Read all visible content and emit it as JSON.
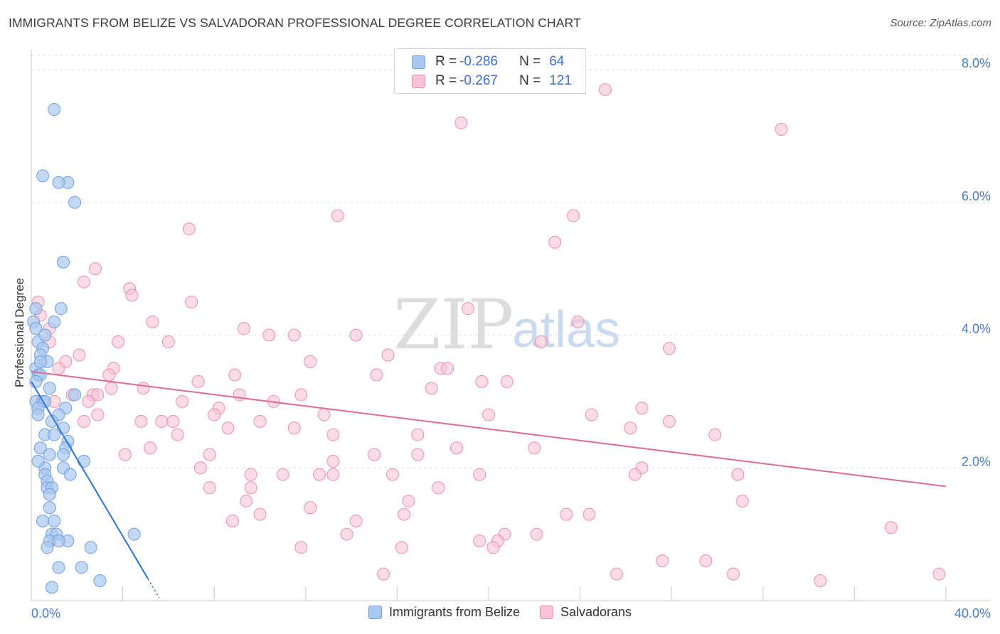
{
  "header": {
    "title": "IMMIGRANTS FROM BELIZE VS SALVADORAN PROFESSIONAL DEGREE CORRELATION CHART",
    "source": "Source: ZipAtlas.com"
  },
  "watermark": {
    "zip": "ZIP",
    "atlas": "atlas"
  },
  "legend": {
    "rows": [
      {
        "r_label": "R =",
        "r_value": "-0.286",
        "n_label": "N =",
        "n_value": "64"
      },
      {
        "r_label": "R =",
        "r_value": "-0.267",
        "n_label": "N =",
        "n_value": "121"
      }
    ]
  },
  "colors": {
    "belize_fill": "#a9c8f0",
    "belize_stroke": "#6f9fdc",
    "belize_line": "#2f72d6",
    "salv_fill": "#f8c3d2",
    "salv_stroke": "#e98fab",
    "salv_line": "#e06a93",
    "grid": "#e3e3e3",
    "tick_text": "#4a7bc8"
  },
  "chart_data": {
    "type": "scatter",
    "title": "IMMIGRANTS FROM BELIZE VS SALVADORAN PROFESSIONAL DEGREE CORRELATION CHART",
    "xlabel": "",
    "ylabel": "Professional Degree",
    "xlim": [
      0,
      40
    ],
    "ylim": [
      0,
      8.3
    ],
    "x_tick_labels": [
      "0.0%",
      "40.0%"
    ],
    "y_ticks": [
      2,
      4,
      6,
      8
    ],
    "y_tick_labels": [
      "2.0%",
      "4.0%",
      "6.0%",
      "8.0%"
    ],
    "grid": true,
    "series": [
      {
        "name": "Immigrants from Belize",
        "r": -0.286,
        "n": 64,
        "trend": {
          "x0": 0,
          "y0": 3.3,
          "x1": 5.1,
          "y1": 0.33,
          "dash_to_x": 5.6
        },
        "points": [
          [
            1.0,
            7.4
          ],
          [
            0.5,
            6.4
          ],
          [
            1.6,
            6.3
          ],
          [
            1.2,
            6.3
          ],
          [
            1.9,
            6.0
          ],
          [
            1.4,
            5.1
          ],
          [
            1.3,
            4.4
          ],
          [
            0.2,
            4.4
          ],
          [
            0.1,
            4.2
          ],
          [
            1.0,
            4.2
          ],
          [
            0.2,
            4.1
          ],
          [
            0.3,
            3.9
          ],
          [
            0.5,
            3.8
          ],
          [
            0.4,
            3.7
          ],
          [
            0.7,
            3.6
          ],
          [
            0.2,
            3.5
          ],
          [
            0.3,
            3.4
          ],
          [
            0.4,
            3.4
          ],
          [
            0.2,
            3.3
          ],
          [
            0.8,
            3.2
          ],
          [
            1.9,
            3.1
          ],
          [
            0.2,
            3.0
          ],
          [
            0.5,
            3.0
          ],
          [
            0.6,
            3.0
          ],
          [
            0.3,
            2.9
          ],
          [
            1.5,
            2.9
          ],
          [
            0.3,
            2.8
          ],
          [
            1.2,
            2.8
          ],
          [
            0.9,
            2.7
          ],
          [
            1.4,
            2.6
          ],
          [
            0.6,
            2.5
          ],
          [
            1.6,
            2.4
          ],
          [
            0.4,
            2.3
          ],
          [
            1.5,
            2.3
          ],
          [
            1.4,
            2.2
          ],
          [
            0.8,
            2.2
          ],
          [
            2.3,
            2.1
          ],
          [
            1.4,
            2.0
          ],
          [
            0.6,
            2.0
          ],
          [
            1.7,
            1.9
          ],
          [
            0.6,
            1.9
          ],
          [
            0.7,
            1.8
          ],
          [
            0.7,
            1.7
          ],
          [
            0.9,
            1.7
          ],
          [
            0.8,
            1.6
          ],
          [
            0.8,
            1.4
          ],
          [
            0.5,
            1.2
          ],
          [
            1.0,
            1.2
          ],
          [
            0.9,
            1.0
          ],
          [
            1.1,
            1.0
          ],
          [
            4.5,
            1.0
          ],
          [
            0.8,
            0.9
          ],
          [
            1.6,
            0.9
          ],
          [
            1.2,
            0.9
          ],
          [
            0.7,
            0.8
          ],
          [
            2.6,
            0.8
          ],
          [
            1.2,
            0.5
          ],
          [
            2.2,
            0.5
          ],
          [
            3.0,
            0.3
          ],
          [
            0.9,
            0.2
          ],
          [
            0.3,
            2.1
          ],
          [
            1.0,
            2.5
          ],
          [
            0.4,
            3.6
          ],
          [
            0.6,
            4.0
          ]
        ]
      },
      {
        "name": "Salvadorans",
        "r": -0.267,
        "n": 121,
        "trend": {
          "x0": 0,
          "y0": 3.45,
          "x1": 40,
          "y1": 1.72
        },
        "points": [
          [
            25.1,
            7.7
          ],
          [
            18.8,
            7.2
          ],
          [
            32.8,
            7.1
          ],
          [
            13.4,
            5.8
          ],
          [
            23.7,
            5.8
          ],
          [
            6.9,
            5.6
          ],
          [
            22.9,
            5.4
          ],
          [
            2.8,
            5.0
          ],
          [
            2.3,
            4.8
          ],
          [
            4.3,
            4.7
          ],
          [
            4.4,
            4.6
          ],
          [
            7.0,
            4.5
          ],
          [
            0.3,
            4.5
          ],
          [
            19.1,
            4.4
          ],
          [
            5.3,
            4.2
          ],
          [
            23.9,
            4.2
          ],
          [
            0.8,
            4.1
          ],
          [
            9.3,
            4.1
          ],
          [
            10.4,
            4.0
          ],
          [
            11.5,
            4.0
          ],
          [
            14.2,
            4.0
          ],
          [
            0.8,
            3.9
          ],
          [
            6.0,
            3.9
          ],
          [
            22.3,
            3.9
          ],
          [
            3.8,
            3.9
          ],
          [
            27.9,
            3.8
          ],
          [
            15.6,
            3.7
          ],
          [
            2.1,
            3.7
          ],
          [
            12.2,
            3.6
          ],
          [
            1.5,
            3.6
          ],
          [
            3.6,
            3.5
          ],
          [
            17.9,
            3.5
          ],
          [
            1.2,
            3.5
          ],
          [
            8.9,
            3.4
          ],
          [
            3.4,
            3.4
          ],
          [
            15.1,
            3.4
          ],
          [
            7.3,
            3.3
          ],
          [
            20.8,
            3.3
          ],
          [
            19.7,
            3.3
          ],
          [
            4.9,
            3.2
          ],
          [
            17.5,
            3.2
          ],
          [
            2.7,
            3.1
          ],
          [
            9.1,
            3.1
          ],
          [
            11.8,
            3.1
          ],
          [
            1.8,
            3.1
          ],
          [
            2.5,
            3.0
          ],
          [
            10.6,
            3.0
          ],
          [
            8.2,
            2.9
          ],
          [
            26.7,
            2.9
          ],
          [
            8.0,
            2.8
          ],
          [
            2.9,
            2.8
          ],
          [
            12.8,
            2.8
          ],
          [
            20.0,
            2.8
          ],
          [
            24.5,
            2.8
          ],
          [
            2.3,
            2.7
          ],
          [
            4.8,
            2.7
          ],
          [
            5.7,
            2.7
          ],
          [
            6.2,
            2.7
          ],
          [
            10.0,
            2.7
          ],
          [
            27.9,
            2.7
          ],
          [
            8.6,
            2.6
          ],
          [
            26.2,
            2.6
          ],
          [
            11.5,
            2.6
          ],
          [
            13.2,
            2.5
          ],
          [
            6.4,
            2.5
          ],
          [
            16.9,
            2.5
          ],
          [
            29.9,
            2.5
          ],
          [
            5.2,
            2.3
          ],
          [
            18.6,
            2.3
          ],
          [
            22.0,
            2.3
          ],
          [
            7.8,
            2.2
          ],
          [
            4.1,
            2.2
          ],
          [
            16.9,
            2.2
          ],
          [
            15.0,
            2.2
          ],
          [
            13.2,
            2.1
          ],
          [
            7.4,
            2.0
          ],
          [
            26.7,
            2.0
          ],
          [
            13.2,
            1.9
          ],
          [
            11.0,
            1.9
          ],
          [
            9.6,
            1.9
          ],
          [
            12.6,
            1.9
          ],
          [
            15.8,
            1.9
          ],
          [
            19.6,
            1.9
          ],
          [
            26.4,
            1.9
          ],
          [
            30.9,
            1.9
          ],
          [
            9.6,
            1.7
          ],
          [
            17.8,
            1.7
          ],
          [
            7.8,
            1.7
          ],
          [
            16.5,
            1.5
          ],
          [
            12.2,
            1.4
          ],
          [
            31.1,
            1.5
          ],
          [
            9.4,
            1.5
          ],
          [
            10.0,
            1.3
          ],
          [
            16.3,
            1.3
          ],
          [
            14.2,
            1.2
          ],
          [
            8.8,
            1.2
          ],
          [
            23.4,
            1.3
          ],
          [
            24.4,
            1.3
          ],
          [
            37.6,
            1.1
          ],
          [
            20.7,
            1.0
          ],
          [
            22.1,
            1.0
          ],
          [
            13.8,
            1.0
          ],
          [
            19.6,
            0.9
          ],
          [
            20.4,
            0.9
          ],
          [
            11.8,
            0.8
          ],
          [
            20.2,
            0.8
          ],
          [
            16.2,
            0.8
          ],
          [
            27.6,
            0.6
          ],
          [
            29.5,
            0.6
          ],
          [
            15.4,
            0.4
          ],
          [
            25.6,
            0.4
          ],
          [
            30.7,
            0.4
          ],
          [
            34.5,
            0.3
          ],
          [
            39.7,
            0.4
          ],
          [
            0.4,
            4.3
          ],
          [
            1.0,
            3.0
          ],
          [
            2.9,
            3.1
          ],
          [
            3.5,
            3.2
          ],
          [
            6.6,
            3.0
          ],
          [
            18.2,
            3.5
          ]
        ]
      }
    ]
  },
  "bottom_legend": {
    "items": [
      "Immigrants from Belize",
      "Salvadorans"
    ]
  }
}
